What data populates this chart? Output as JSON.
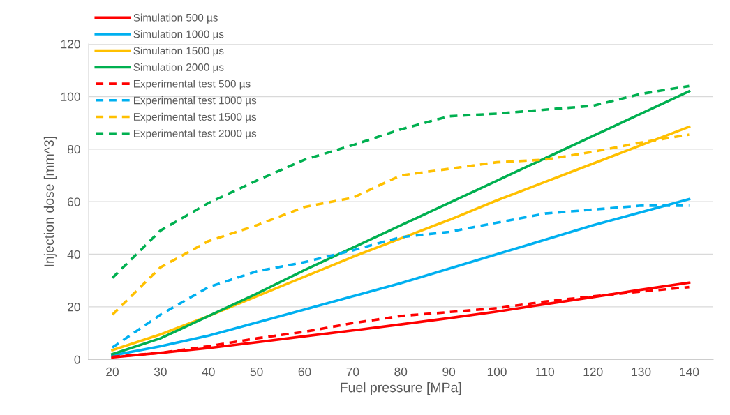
{
  "chart_data": {
    "type": "line",
    "xlabel": "Fuel pressure [MPa]",
    "ylabel": "Injection dose [mm^3]",
    "categories": [
      "20",
      "30",
      "40",
      "50",
      "60",
      "70",
      "80",
      "90",
      "100",
      "110",
      "120",
      "130",
      "140"
    ],
    "ylim": [
      0,
      120
    ],
    "yticks": [
      0,
      20,
      40,
      60,
      80,
      100,
      120
    ],
    "grid": "y",
    "legend": "top left",
    "series": [
      {
        "name": "Simulation 500 µs",
        "color": "#ff0000",
        "line_style": "solid",
        "values": [
          0.8,
          2.5,
          4.3,
          6.5,
          8.8,
          11,
          13.3,
          15.7,
          18.2,
          21,
          23.7,
          26.5,
          29.2
        ]
      },
      {
        "name": "Simulation 1000 µs",
        "color": "#00b0f0",
        "line_style": "solid",
        "values": [
          1.5,
          5,
          9,
          14,
          19,
          24,
          29,
          34.5,
          40,
          45.5,
          51,
          56,
          61
        ]
      },
      {
        "name": "Simulation 1500 µs",
        "color": "#ffc000",
        "line_style": "solid",
        "values": [
          3.5,
          9.5,
          16.5,
          24,
          31.5,
          39,
          46,
          53,
          60.5,
          67.5,
          74.5,
          81.5,
          88.5
        ]
      },
      {
        "name": "Simulation 2000 µs",
        "color": "#00b050",
        "line_style": "solid",
        "values": [
          2,
          8,
          16.5,
          25,
          34,
          42.5,
          51,
          59.5,
          68,
          76.5,
          85,
          93.5,
          102
        ]
      },
      {
        "name": "Experimental test 500 µs",
        "color": "#ff0000",
        "line_style": "dashed",
        "values": [
          1,
          2.5,
          5,
          8,
          10.5,
          13.8,
          16.5,
          18,
          19.5,
          22,
          24,
          25.8,
          27.5
        ]
      },
      {
        "name": "Experimental test 1000 µs",
        "color": "#00b0f0",
        "line_style": "dashed",
        "values": [
          4.5,
          17,
          27.5,
          33.5,
          37,
          41.5,
          46.5,
          48.5,
          52,
          55.5,
          57,
          58.5,
          58.5
        ]
      },
      {
        "name": "Experimental test 1500 µs",
        "color": "#ffc000",
        "line_style": "dashed",
        "values": [
          17,
          35,
          45,
          51,
          58,
          61.5,
          70,
          72.5,
          75,
          76,
          79,
          82.5,
          85.5
        ]
      },
      {
        "name": "Experimental test 2000 µs",
        "color": "#00b050",
        "line_style": "dashed",
        "values": [
          31,
          49,
          59.5,
          68,
          76,
          81.5,
          87.5,
          92.5,
          93.5,
          95,
          96.5,
          101,
          104
        ]
      }
    ]
  }
}
